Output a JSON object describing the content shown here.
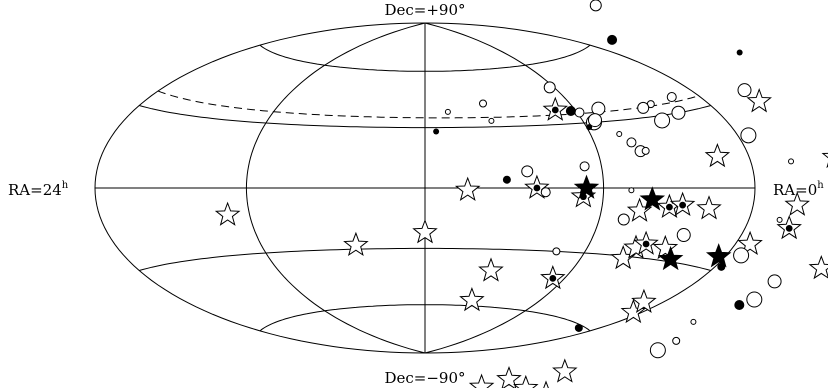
{
  "chart_data": {
    "type": "scatter",
    "projection": "hammer-aitoff",
    "title": "",
    "labels": {
      "top": "Dec=+90°",
      "bottom": "Dec=−90°",
      "left_main": "RA=24",
      "left_sup": "h",
      "right_main": "RA=0",
      "right_sup": "h"
    },
    "ra_lines_hours": [
      0,
      6,
      12,
      18,
      24
    ],
    "dec_lines_deg": [
      -60,
      -30,
      0,
      30,
      60
    ],
    "dashed_curve": {
      "ra_left": 24,
      "dec_left": 36,
      "ra_right": 0,
      "dec_right": 34
    },
    "series": [
      {
        "marker": "open-star",
        "points": [
          [
            18.8,
            -12
          ],
          [
            14.5,
            -28
          ],
          [
            12.0,
            -22
          ],
          [
            10.6,
            -1
          ],
          [
            9.3,
            -41
          ],
          [
            9.5,
            -57
          ],
          [
            4.6,
            -10
          ],
          [
            4.3,
            -31
          ],
          [
            4.1,
            -26
          ],
          [
            2.9,
            -25
          ],
          [
            0.4,
            -50
          ],
          [
            0.9,
            -46
          ],
          [
            1.4,
            12
          ],
          [
            1.9,
            -8
          ],
          [
            -2.2,
            -5
          ],
          [
            -6.0,
            -16
          ],
          [
            -8.6,
            -63
          ],
          [
            -9.4,
            -53
          ],
          [
            -2.6,
            26
          ],
          [
            -4.7,
            7
          ],
          [
            -7.0,
            -58
          ],
          [
            -10.1,
            -60
          ],
          [
            -0.7,
            -19
          ]
        ]
      },
      {
        "marker": "star-with-dot",
        "points": [
          [
            6.8,
            37
          ],
          [
            8.3,
            0
          ],
          [
            3.5,
            -8
          ],
          [
            3.8,
            -24
          ],
          [
            6.7,
            -4
          ],
          [
            6.5,
            -43
          ],
          [
            3.0,
            -7
          ],
          [
            -9.8,
            -44
          ],
          [
            -2.2,
            -12
          ]
        ]
      },
      {
        "marker": "filled-star",
        "points": [
          [
            4.2,
            -5
          ],
          [
            6.6,
            0
          ],
          [
            0.3,
            -25
          ],
          [
            2.3,
            -29
          ]
        ]
      },
      {
        "marker": "open-circle",
        "points": [
          [
            11.1,
            38
          ],
          [
            9.6,
            42
          ],
          [
            5.9,
            35
          ],
          [
            6.2,
            48
          ],
          [
            5.0,
            36
          ],
          [
            5.6,
            30
          ],
          [
            4.9,
            24
          ],
          [
            2.6,
            35
          ],
          [
            4.6,
            20
          ],
          [
            4.4,
            16
          ],
          [
            1.8,
            30
          ],
          [
            -0.5,
            18
          ],
          [
            -2.0,
            8
          ],
          [
            -12.0,
            7
          ],
          [
            -10.2,
            -3
          ],
          [
            -7.1,
            52
          ],
          [
            -3.9,
            -25
          ],
          [
            -5.6,
            -46
          ],
          [
            -3.4,
            -42
          ],
          [
            -0.6,
            -23
          ],
          [
            8.0,
            -2
          ],
          [
            8.6,
            8
          ],
          [
            5.5,
            31
          ],
          [
            2.8,
            28
          ],
          [
            -1.5,
            -10
          ],
          [
            -5.0,
            -44
          ],
          [
            6.6,
            10
          ],
          [
            5.1,
            -14
          ],
          [
            2.5,
            -19
          ],
          [
            -0.7,
            -23
          ],
          [
            5.0,
            -1
          ],
          [
            7.1,
            -30
          ],
          [
            1.3,
            36
          ],
          [
            3.1,
            34
          ],
          [
            -2.6,
            30
          ],
          [
            -4.2,
            -30
          ],
          [
            9.5,
            33
          ],
          [
            4.2,
            16
          ]
        ]
      },
      {
        "marker": "filled-circle",
        "points": [
          [
            11.6,
            28
          ],
          [
            9.3,
            4
          ],
          [
            -1.8,
            57
          ],
          [
            -5.8,
            32
          ],
          [
            1.0,
            -61
          ],
          [
            6.2,
            36
          ],
          [
            5.9,
            28
          ],
          [
            -0.3,
            -28
          ],
          [
            -3.9,
            -33
          ]
        ]
      }
    ]
  }
}
